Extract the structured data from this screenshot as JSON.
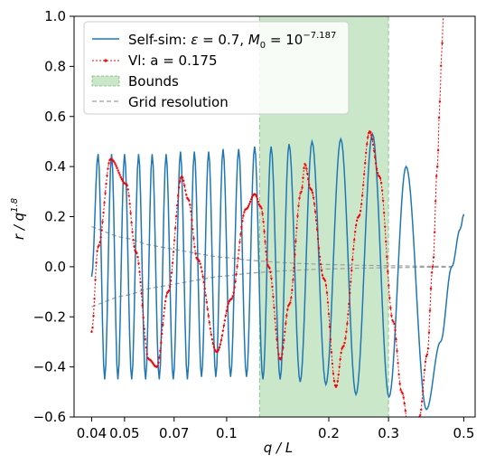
{
  "chart_data": {
    "type": "line",
    "xlabel": "q / L",
    "ylabel": "r / q^1.8",
    "xscale": "log",
    "xlim": [
      0.0355,
      0.54
    ],
    "ylim": [
      -0.6,
      1.0
    ],
    "xticks": [
      0.04,
      0.05,
      0.07,
      0.1,
      0.2,
      0.3,
      0.5
    ],
    "xtick_labels": [
      "0.04",
      "0.05",
      "0.07",
      "0.1",
      "0.2",
      "0.3",
      "0.5"
    ],
    "yticks": [
      -0.6,
      -0.4,
      -0.2,
      0.0,
      0.2,
      0.4,
      0.6,
      0.8,
      1.0
    ],
    "ytick_labels": [
      "−0.6",
      "−0.4",
      "−0.2",
      "0.0",
      "0.2",
      "0.4",
      "0.6",
      "0.8",
      "1.0"
    ],
    "bounds": {
      "x_start": 0.125,
      "x_end": 0.3
    },
    "legend_position": "top-left",
    "colors": {
      "self_sim": "#1f77b4",
      "vl": "#ff0000",
      "bounds": "#2ca02c",
      "grid_res": "#a0a0a0"
    },
    "series": [
      {
        "name": "Self-sim: ε = 0.7, M₀ = 10^−7.187",
        "legend": {
          "base": "Self-sim: ",
          "eps": "ε",
          "eq1": " = 0.7, ",
          "m": "M",
          "sub": "0",
          "eq2": " = 10",
          "sup": "−7.187"
        },
        "kind": "oscillation",
        "points": [
          [
            0.04,
            -0.04
          ],
          [
            0.0418,
            0.45
          ],
          [
            0.0437,
            -0.45
          ],
          [
            0.0458,
            0.45
          ],
          [
            0.0478,
            -0.45
          ],
          [
            0.05,
            0.45
          ],
          [
            0.0525,
            -0.45
          ],
          [
            0.055,
            0.45
          ],
          [
            0.0577,
            -0.45
          ],
          [
            0.0603,
            0.45
          ],
          [
            0.0633,
            -0.45
          ],
          [
            0.0663,
            0.45
          ],
          [
            0.0696,
            -0.45
          ],
          [
            0.0731,
            0.46
          ],
          [
            0.0766,
            -0.45
          ],
          [
            0.0803,
            0.46
          ],
          [
            0.0843,
            -0.44
          ],
          [
            0.0885,
            0.46
          ],
          [
            0.0929,
            -0.44
          ],
          [
            0.0976,
            0.47
          ],
          [
            0.1027,
            -0.44
          ],
          [
            0.1085,
            0.47
          ],
          [
            0.1144,
            -0.44
          ],
          [
            0.1209,
            0.48
          ],
          [
            0.1279,
            -0.45
          ],
          [
            0.1352,
            0.48
          ],
          [
            0.1438,
            -0.45
          ],
          [
            0.1527,
            0.49
          ],
          [
            0.1647,
            -0.46
          ],
          [
            0.1785,
            0.5
          ],
          [
            0.1961,
            -0.47
          ],
          [
            0.217,
            0.51
          ],
          [
            0.2405,
            -0.51
          ],
          [
            0.269,
            0.53
          ],
          [
            0.301,
            -0.52
          ],
          [
            0.338,
            0.4
          ],
          [
            0.388,
            -0.57
          ],
          [
            0.427,
            -0.3
          ],
          [
            0.461,
            0.0
          ],
          [
            0.488,
            0.15
          ],
          [
            0.5,
            0.21
          ]
        ]
      },
      {
        "name": "Vl: a = 0.175",
        "kind": "oscillation",
        "points": [
          [
            0.04,
            -0.26
          ],
          [
            0.0418,
            0.08
          ],
          [
            0.0455,
            0.43
          ],
          [
            0.0506,
            0.33
          ],
          [
            0.054,
            0.06
          ],
          [
            0.059,
            -0.37
          ],
          [
            0.0622,
            -0.4
          ],
          [
            0.0672,
            -0.1
          ],
          [
            0.0737,
            0.36
          ],
          [
            0.077,
            0.27
          ],
          [
            0.082,
            0.03
          ],
          [
            0.0935,
            -0.34
          ],
          [
            0.103,
            -0.13
          ],
          [
            0.114,
            0.23
          ],
          [
            0.121,
            0.29
          ],
          [
            0.126,
            0.24
          ],
          [
            0.133,
            0.0
          ],
          [
            0.144,
            -0.37
          ],
          [
            0.153,
            -0.15
          ],
          [
            0.166,
            0.3
          ],
          [
            0.17,
            0.41
          ],
          [
            0.177,
            0.31
          ],
          [
            0.194,
            -0.05
          ],
          [
            0.21,
            -0.48
          ],
          [
            0.22,
            -0.32
          ],
          [
            0.245,
            0.2
          ],
          [
            0.264,
            0.54
          ],
          [
            0.282,
            0.36
          ],
          [
            0.31,
            -0.22
          ],
          [
            0.328,
            -0.5
          ],
          [
            0.345,
            -0.65
          ]
        ],
        "rising_tail": [
          [
            0.37,
            -0.6
          ],
          [
            0.39,
            -0.35
          ],
          [
            0.405,
            0.0
          ],
          [
            0.418,
            0.4
          ],
          [
            0.425,
            0.66
          ],
          [
            0.43,
            0.85
          ],
          [
            0.436,
            1.02
          ]
        ]
      },
      {
        "name": "Grid resolution",
        "kind": "envelope",
        "points": [
          [
            0.04,
            0.16
          ],
          [
            0.0437,
            0.14
          ],
          [
            0.0478,
            0.12
          ],
          [
            0.0525,
            0.11
          ],
          [
            0.0577,
            0.09
          ],
          [
            0.0633,
            0.08
          ],
          [
            0.0696,
            0.07
          ],
          [
            0.0766,
            0.06
          ],
          [
            0.0843,
            0.05
          ],
          [
            0.0929,
            0.04
          ],
          [
            0.1027,
            0.035
          ],
          [
            0.1144,
            0.027
          ],
          [
            0.1279,
            0.022
          ],
          [
            0.1438,
            0.017
          ],
          [
            0.1647,
            0.013
          ],
          [
            0.1961,
            0.009
          ],
          [
            0.2405,
            0.006
          ],
          [
            0.301,
            0.004
          ],
          [
            0.388,
            0.002
          ],
          [
            0.461,
            0.0015
          ]
        ]
      },
      {
        "name": "Bounds"
      }
    ]
  }
}
